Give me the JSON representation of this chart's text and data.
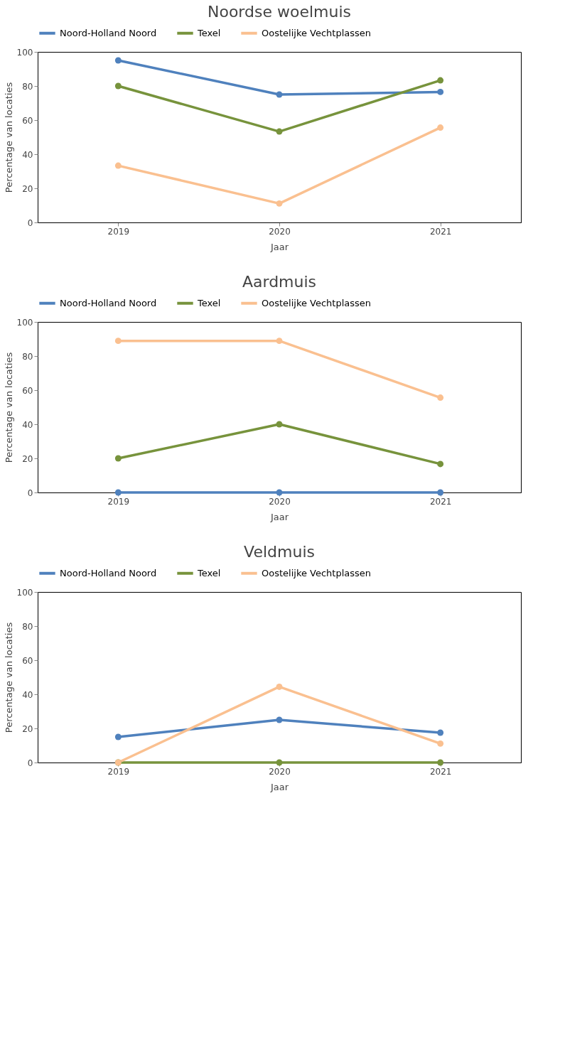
{
  "chart_data": [
    {
      "type": "line",
      "title": "Noordse woelmuis",
      "xlabel": "Jaar",
      "ylabel": "Percentage van locaties",
      "categories": [
        "2019",
        "2020",
        "2021"
      ],
      "ylim": [
        0,
        100
      ],
      "yticks": [
        0,
        20,
        40,
        60,
        80,
        100
      ],
      "grid": false,
      "legend": "top",
      "marker": "circle",
      "line_style": "solid",
      "series": [
        {
          "name": "Noord-Holland Noord",
          "color": "#4f81bd",
          "values": [
            95,
            75,
            76.5
          ]
        },
        {
          "name": "Texel",
          "color": "#77933c",
          "values": [
            80,
            53.3,
            83.3
          ]
        },
        {
          "name": "Oostelijke Vechtplassen",
          "color": "#fac090",
          "values": [
            33.3,
            11.1,
            55.6
          ]
        }
      ]
    },
    {
      "type": "line",
      "title": "Aardmuis",
      "xlabel": "Jaar",
      "ylabel": "Percentage van locaties",
      "categories": [
        "2019",
        "2020",
        "2021"
      ],
      "ylim": [
        0,
        100
      ],
      "yticks": [
        0,
        20,
        40,
        60,
        80,
        100
      ],
      "grid": false,
      "legend": "top",
      "marker": "circle",
      "line_style": "solid",
      "series": [
        {
          "name": "Noord-Holland Noord",
          "color": "#4f81bd",
          "values": [
            0,
            0,
            0
          ]
        },
        {
          "name": "Texel",
          "color": "#77933c",
          "values": [
            20,
            40,
            16.7
          ]
        },
        {
          "name": "Oostelijke Vechtplassen",
          "color": "#fac090",
          "values": [
            88.9,
            88.9,
            55.6
          ]
        }
      ]
    },
    {
      "type": "line",
      "title": "Veldmuis",
      "xlabel": "Jaar",
      "ylabel": "Percentage van locaties",
      "categories": [
        "2019",
        "2020",
        "2021"
      ],
      "ylim": [
        0,
        100
      ],
      "yticks": [
        0,
        20,
        40,
        60,
        80,
        100
      ],
      "grid": false,
      "legend": "top",
      "marker": "circle",
      "line_style": "solid",
      "series": [
        {
          "name": "Noord-Holland Noord",
          "color": "#4f81bd",
          "values": [
            15,
            25,
            17.5
          ]
        },
        {
          "name": "Texel",
          "color": "#77933c",
          "values": [
            0,
            0,
            0
          ]
        },
        {
          "name": "Oostelijke Vechtplassen",
          "color": "#fac090",
          "values": [
            0,
            44.4,
            11.1
          ]
        }
      ]
    }
  ]
}
